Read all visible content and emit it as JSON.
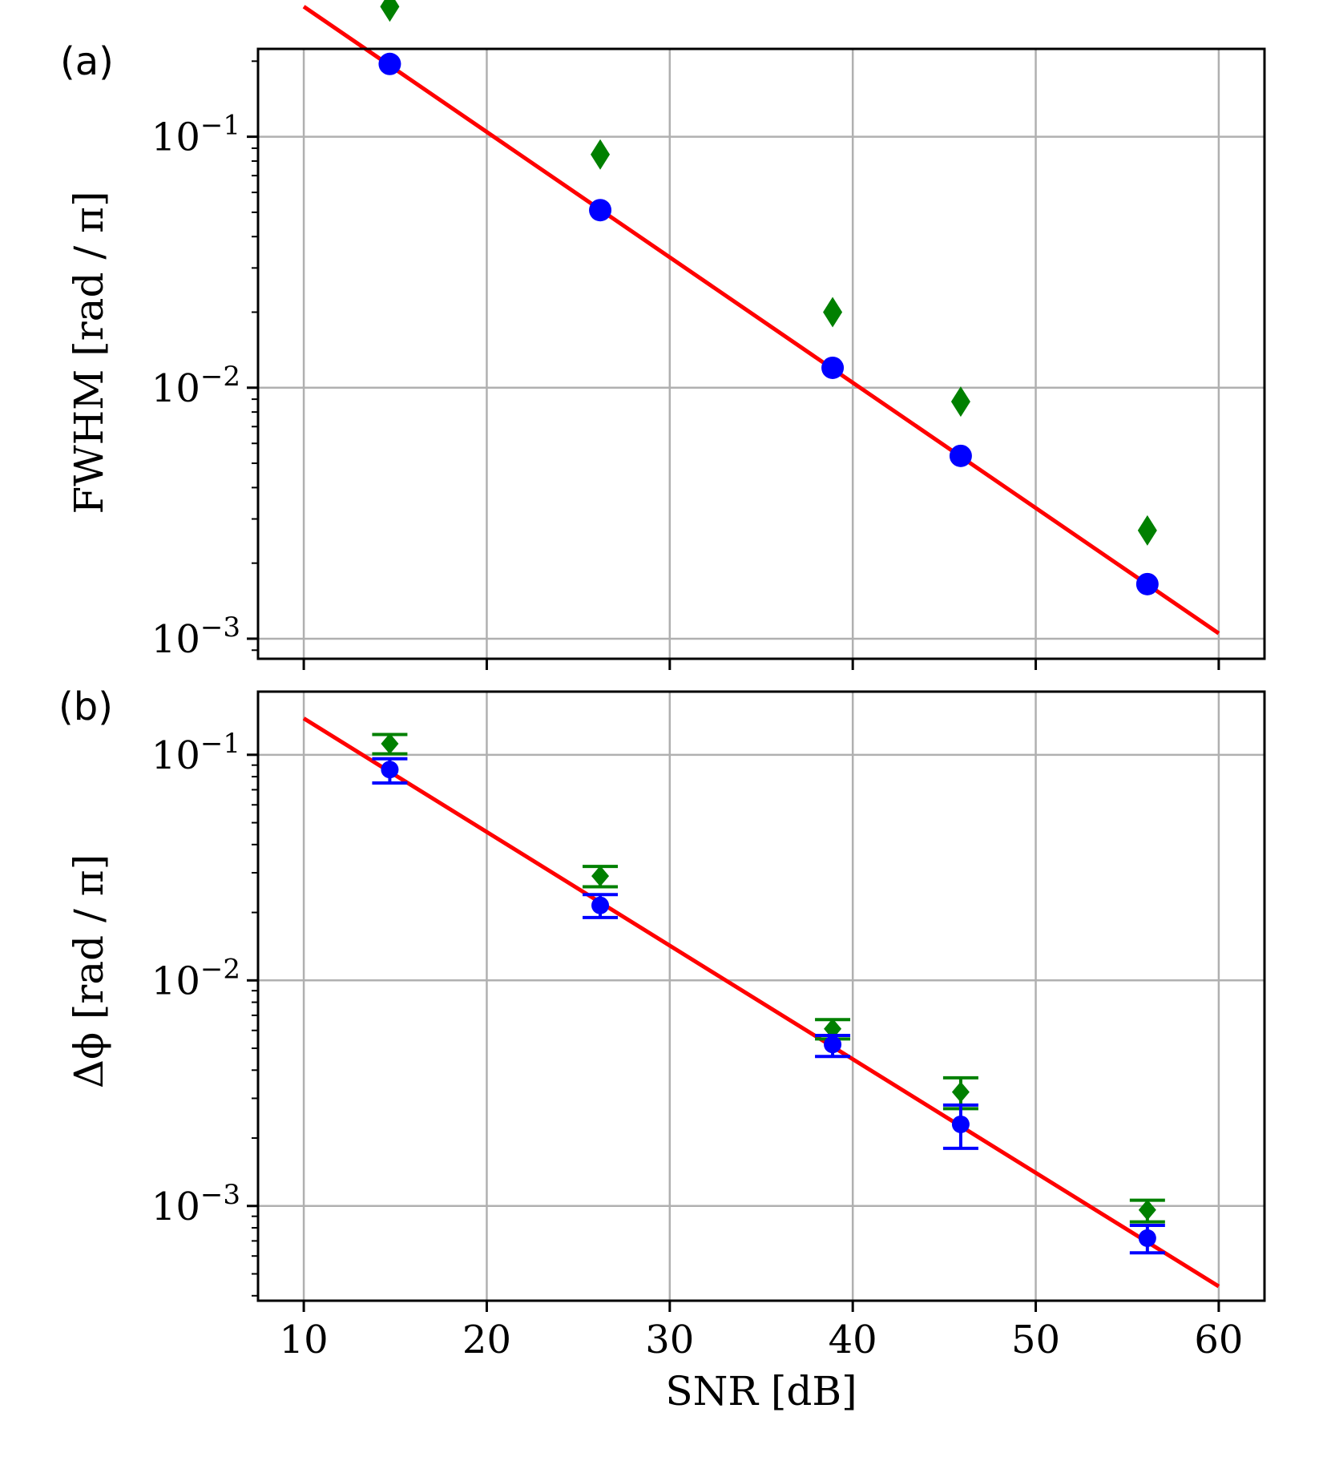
{
  "colors": {
    "fit": "#ff0000",
    "blue_series": "#0000ff",
    "green_series": "#008000",
    "grid": "#b0b0b0",
    "axes": "#000000"
  },
  "chart_data": [
    {
      "type": "scatter",
      "panel_label": "(a)",
      "ylabel": "FWHM [rad / π]",
      "xlabel": "",
      "yscale": "log",
      "xlim": [
        7.5,
        62.5
      ],
      "ylim_log10": [
        -3.08,
        -0.65
      ],
      "xticks": [
        10,
        20,
        30,
        40,
        50,
        60
      ],
      "yticks": [
        {
          "exp": -1,
          "base": "10",
          "sup": "−1"
        },
        {
          "exp": -2,
          "base": "10",
          "sup": "−2"
        },
        {
          "exp": -3,
          "base": "10",
          "sup": "−3"
        }
      ],
      "grid": true,
      "fit_line": {
        "x": [
          10,
          60
        ],
        "y": [
          0.33,
          0.00105
        ]
      },
      "series": [
        {
          "name": "blue-circles",
          "marker": "circle",
          "x": [
            14.7,
            26.2,
            38.9,
            45.9,
            56.1
          ],
          "y": [
            0.195,
            0.051,
            0.012,
            0.00535,
            0.00165
          ]
        },
        {
          "name": "green-diamonds",
          "marker": "diamond",
          "x": [
            14.7,
            26.2,
            38.9,
            45.9,
            56.1
          ],
          "y": [
            0.33,
            0.085,
            0.02,
            0.0088,
            0.0027
          ]
        }
      ]
    },
    {
      "type": "scatter",
      "panel_label": "(b)",
      "ylabel": "Δϕ [rad / π]",
      "xlabel": "SNR [dB]",
      "yscale": "log",
      "xlim": [
        7.5,
        62.5
      ],
      "ylim_log10": [
        -3.42,
        -0.72
      ],
      "xticks": [
        10,
        20,
        30,
        40,
        50,
        60
      ],
      "yticks": [
        {
          "exp": -1,
          "base": "10",
          "sup": "−1"
        },
        {
          "exp": -2,
          "base": "10",
          "sup": "−2"
        },
        {
          "exp": -3,
          "base": "10",
          "sup": "−3"
        }
      ],
      "grid": true,
      "fit_line": {
        "x": [
          10,
          60
        ],
        "y": [
          0.145,
          0.00044
        ]
      },
      "series": [
        {
          "name": "blue-circles",
          "marker": "circle",
          "x": [
            14.7,
            26.2,
            38.9,
            45.9,
            56.1
          ],
          "y": [
            0.086,
            0.0215,
            0.0052,
            0.0023,
            0.00072
          ],
          "err_low": [
            0.075,
            0.019,
            0.0046,
            0.0018,
            0.00062
          ],
          "err_high": [
            0.096,
            0.024,
            0.0057,
            0.0028,
            0.00082
          ]
        },
        {
          "name": "green-diamonds",
          "marker": "diamond",
          "x": [
            14.7,
            26.2,
            38.9,
            45.9,
            56.1
          ],
          "y": [
            0.112,
            0.029,
            0.0061,
            0.0032,
            0.00096
          ],
          "err_low": [
            0.101,
            0.026,
            0.0055,
            0.0027,
            0.00085
          ],
          "err_high": [
            0.123,
            0.032,
            0.0067,
            0.0037,
            0.00106
          ]
        }
      ]
    }
  ]
}
